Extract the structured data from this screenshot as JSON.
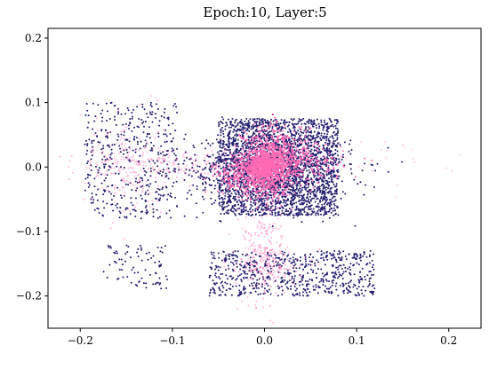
{
  "chart_data": {
    "type": "scatter",
    "title": "Epoch:10, Layer:5",
    "xlabel": "",
    "ylabel": "",
    "xlim": [
      -0.235,
      0.235
    ],
    "ylim": [
      -0.25,
      0.215
    ],
    "x_ticks": [
      -0.2,
      -0.1,
      0.0,
      0.1,
      0.2
    ],
    "x_tick_labels": [
      "−0.2",
      "−0.1",
      "0.0",
      "0.1",
      "0.2"
    ],
    "y_ticks": [
      -0.2,
      -0.1,
      0.0,
      0.1,
      0.2
    ],
    "y_tick_labels": [
      "−0.2",
      "−0.1",
      "0.0",
      "0.1",
      "0.2"
    ],
    "grid": false,
    "legend": "none",
    "series": [
      {
        "color": "#231e6e",
        "clusters": [
          {
            "cx": 0.015,
            "cy": 0.0,
            "sx": 0.065,
            "sy": 0.075,
            "count": 2200,
            "uniform": true
          },
          {
            "cx": 0.005,
            "cy": -0.005,
            "sx": 0.045,
            "sy": 0.03,
            "count": 900
          },
          {
            "cx": -0.145,
            "cy": 0.01,
            "sx": 0.05,
            "sy": 0.09,
            "count": 420,
            "uniform": true
          },
          {
            "cx": 0.03,
            "cy": -0.165,
            "sx": 0.09,
            "sy": 0.035,
            "count": 650,
            "uniform": true
          },
          {
            "cx": -0.14,
            "cy": -0.155,
            "sx": 0.035,
            "sy": 0.035,
            "count": 80,
            "uniform": true
          }
        ]
      },
      {
        "color": "#ff69b4",
        "clusters": [
          {
            "cx": 0.0,
            "cy": 0.0,
            "sx": 0.012,
            "sy": 0.012,
            "count": 900
          },
          {
            "cx": 0.012,
            "cy": 0.028,
            "sx": 0.018,
            "sy": 0.02,
            "count": 350
          },
          {
            "cx": 0.035,
            "cy": 0.005,
            "sx": 0.025,
            "sy": 0.015,
            "count": 250
          },
          {
            "cx": -0.025,
            "cy": -0.015,
            "sx": 0.015,
            "sy": 0.012,
            "count": 200
          },
          {
            "cx": 0.005,
            "cy": -0.03,
            "sx": 0.015,
            "sy": 0.012,
            "count": 150
          },
          {
            "cx": -0.09,
            "cy": 0.003,
            "sx": 0.06,
            "sy": 0.012,
            "count": 220,
            "alpha": 0.45
          },
          {
            "cx": -0.15,
            "cy": 0.0,
            "sx": 0.02,
            "sy": 0.04,
            "count": 160,
            "alpha": 0.45
          },
          {
            "cx": 0.0,
            "cy": -0.12,
            "sx": 0.012,
            "sy": 0.05,
            "count": 260,
            "alpha": 0.45
          },
          {
            "cx": 0.005,
            "cy": -0.155,
            "sx": 0.02,
            "sy": 0.015,
            "count": 120,
            "alpha": 0.45
          },
          {
            "cx": 0.11,
            "cy": 0.01,
            "sx": 0.05,
            "sy": 0.02,
            "count": 30,
            "alpha": 0.35
          }
        ]
      }
    ]
  }
}
